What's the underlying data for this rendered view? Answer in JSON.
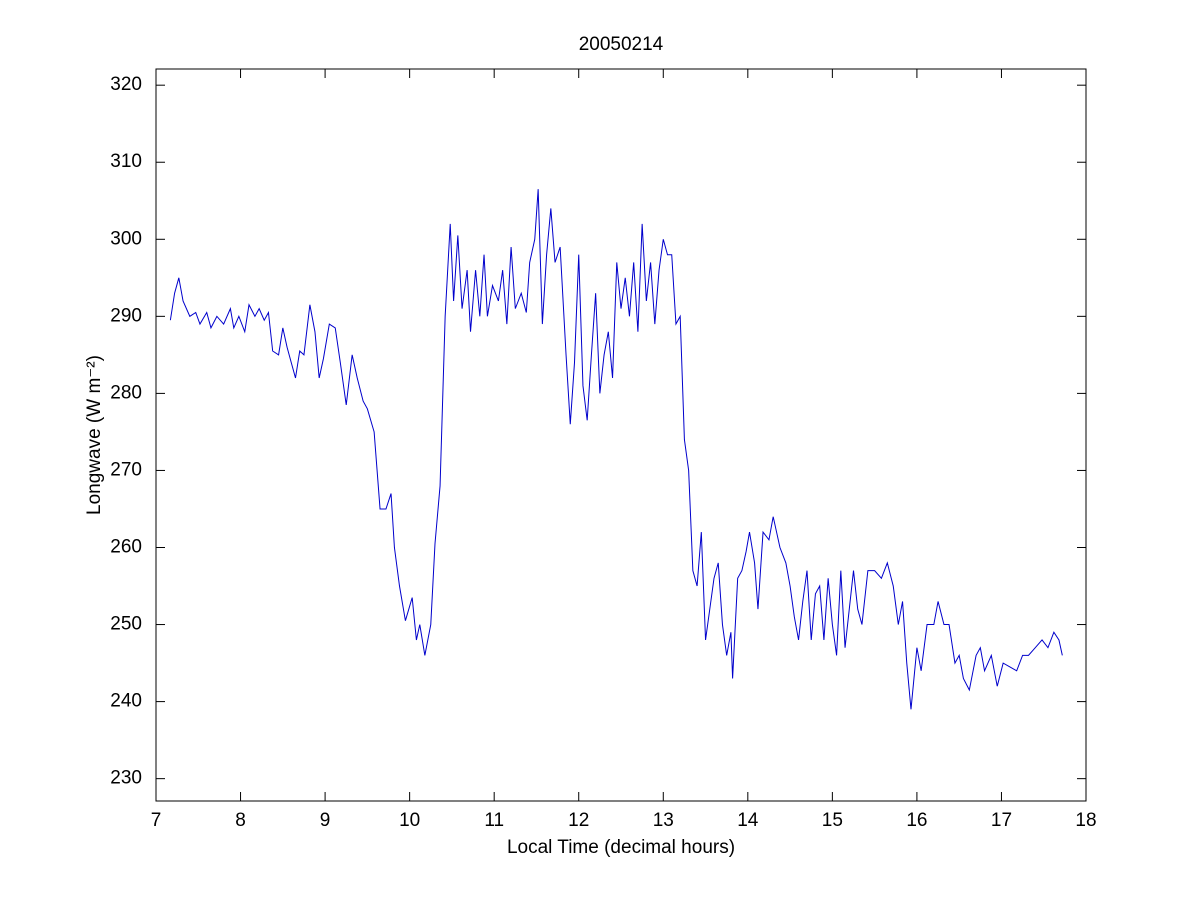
{
  "chart_data": {
    "type": "line",
    "title": "20050214",
    "xlabel": "Local Time (decimal hours)",
    "ylabel": "Longwave (W m⁻²)",
    "xlim": [
      7,
      18
    ],
    "ylim": [
      227.1,
      322.1
    ],
    "xticks": [
      7,
      8,
      9,
      10,
      11,
      12,
      13,
      14,
      15,
      16,
      17,
      18
    ],
    "yticks": [
      230,
      240,
      250,
      260,
      270,
      280,
      290,
      300,
      310,
      320
    ],
    "grid": false,
    "series": [
      {
        "color": "#0000cc",
        "x": [
          7.17,
          7.22,
          7.27,
          7.32,
          7.4,
          7.47,
          7.52,
          7.6,
          7.65,
          7.72,
          7.8,
          7.88,
          7.92,
          7.98,
          8.05,
          8.1,
          8.17,
          8.22,
          8.28,
          8.33,
          8.38,
          8.45,
          8.5,
          8.55,
          8.6,
          8.65,
          8.7,
          8.75,
          8.82,
          8.88,
          8.93,
          8.98,
          9.05,
          9.12,
          9.18,
          9.25,
          9.32,
          9.38,
          9.45,
          9.5,
          9.58,
          9.65,
          9.72,
          9.78,
          9.82,
          9.88,
          9.95,
          10.03,
          10.08,
          10.12,
          10.18,
          10.25,
          10.3,
          10.36,
          10.42,
          10.48,
          10.52,
          10.57,
          10.62,
          10.68,
          10.72,
          10.78,
          10.83,
          10.88,
          10.92,
          10.98,
          11.05,
          11.1,
          11.15,
          11.2,
          11.25,
          11.32,
          11.38,
          11.42,
          11.48,
          11.52,
          11.57,
          11.62,
          11.67,
          11.72,
          11.78,
          11.85,
          11.9,
          11.95,
          12.0,
          12.05,
          12.1,
          12.15,
          12.2,
          12.25,
          12.3,
          12.35,
          12.4,
          12.45,
          12.5,
          12.55,
          12.6,
          12.65,
          12.7,
          12.75,
          12.8,
          12.85,
          12.9,
          12.95,
          13.0,
          13.05,
          13.1,
          13.15,
          13.2,
          13.25,
          13.3,
          13.35,
          13.4,
          13.45,
          13.5,
          13.55,
          13.6,
          13.65,
          13.7,
          13.75,
          13.8,
          13.82,
          13.88,
          13.93,
          13.98,
          14.02,
          14.08,
          14.12,
          14.18,
          14.25,
          14.3,
          14.38,
          14.45,
          14.5,
          14.55,
          14.6,
          14.65,
          14.7,
          14.75,
          14.8,
          14.85,
          14.9,
          14.95,
          15.0,
          15.05,
          15.1,
          15.15,
          15.2,
          15.25,
          15.3,
          15.35,
          15.42,
          15.5,
          15.58,
          15.65,
          15.72,
          15.78,
          15.83,
          15.88,
          15.93,
          16.0,
          16.05,
          16.12,
          16.2,
          16.25,
          16.32,
          16.38,
          16.45,
          16.5,
          16.55,
          16.62,
          16.7,
          16.75,
          16.8,
          16.88,
          16.95,
          17.02,
          17.1,
          17.18,
          17.25,
          17.32,
          17.4,
          17.48,
          17.55,
          17.62,
          17.68,
          17.72
        ],
        "values": [
          289.5,
          293,
          295,
          292,
          290,
          290.5,
          289,
          290.5,
          288.5,
          290,
          289,
          291,
          288.5,
          290,
          288,
          291.5,
          290,
          291,
          289.5,
          290.5,
          285.5,
          285,
          288.5,
          286,
          284,
          282,
          285.5,
          285,
          291.5,
          288,
          282,
          284.5,
          289,
          288.5,
          284,
          278.5,
          285,
          282,
          279,
          278,
          275,
          265,
          265,
          267,
          260,
          255,
          250.5,
          253.5,
          248,
          250,
          246,
          250,
          260.5,
          268,
          290,
          302,
          292,
          300.5,
          291,
          296,
          288,
          296,
          290,
          298,
          290,
          294,
          292,
          296,
          289,
          299,
          291,
          293,
          290.5,
          297,
          300,
          306.5,
          289,
          298,
          304,
          297,
          299,
          285,
          276,
          284,
          298,
          281,
          276.5,
          285,
          293,
          280,
          285,
          288,
          282,
          297,
          291,
          295,
          290,
          297,
          288,
          302,
          292,
          297,
          289,
          296,
          300,
          298,
          298,
          289,
          290,
          274,
          270,
          257,
          255,
          262,
          248,
          252,
          256,
          258,
          250,
          246,
          249,
          243,
          256,
          257,
          259.5,
          262,
          258,
          252,
          262,
          261,
          264,
          260,
          258,
          255,
          251,
          248,
          253,
          257,
          248,
          254,
          255,
          248,
          256,
          250,
          246,
          257,
          247,
          252,
          257,
          252,
          250,
          257,
          257,
          256,
          258,
          255,
          250,
          253,
          245,
          239,
          247,
          244,
          250,
          250,
          253,
          250,
          250,
          245,
          246,
          243,
          241.5,
          246,
          247,
          244,
          246,
          242,
          245,
          244.5,
          244,
          246,
          246,
          247,
          248,
          247,
          249,
          248,
          246
        ]
      }
    ]
  }
}
